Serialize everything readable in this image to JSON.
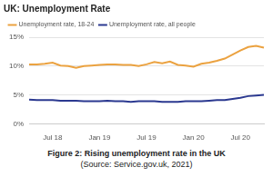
{
  "chart_data": {
    "type": "line",
    "title": "UK: Unemployment Rate",
    "caption": "Figure 2: Rising unemployment rate in the UK",
    "source": "(Source: Service.gov.uk, 2021)",
    "categories": [
      null,
      null,
      null,
      "Jul 18",
      null,
      null,
      null,
      null,
      null,
      "Jan 19",
      null,
      null,
      null,
      null,
      null,
      "Jul 19",
      null,
      null,
      null,
      null,
      null,
      "Jan 20",
      null,
      null,
      null,
      null,
      null,
      "Jul 20",
      null,
      null,
      null
    ],
    "series": [
      {
        "name": "Unemployment rate, 18-24",
        "color": "#eba240",
        "values": [
          10.3,
          10.3,
          10.4,
          10.6,
          10.1,
          10.0,
          9.7,
          10.0,
          10.1,
          10.2,
          10.3,
          10.3,
          10.2,
          10.2,
          10.0,
          10.3,
          10.7,
          10.5,
          10.8,
          10.2,
          10.1,
          9.9,
          10.4,
          10.6,
          10.9,
          11.3,
          12.0,
          12.7,
          13.3,
          13.5,
          13.2
        ]
      },
      {
        "name": "Unemployment rate, all people",
        "color": "#2b3990",
        "values": [
          4.2,
          4.1,
          4.1,
          4.1,
          4.0,
          4.0,
          4.0,
          3.9,
          3.9,
          3.9,
          4.0,
          3.9,
          3.9,
          3.8,
          3.9,
          3.9,
          3.9,
          3.8,
          3.8,
          3.8,
          3.9,
          3.9,
          3.9,
          4.0,
          4.1,
          4.1,
          4.3,
          4.5,
          4.8,
          4.9,
          5.0
        ]
      }
    ],
    "ylim": [
      0,
      15
    ],
    "yticks": [
      {
        "value": 0,
        "label": "0%"
      },
      {
        "value": 5,
        "label": "5%"
      },
      {
        "value": 10,
        "label": "10%"
      },
      {
        "value": 15,
        "label": "15%"
      }
    ],
    "grid": true,
    "legend": "top-left"
  }
}
